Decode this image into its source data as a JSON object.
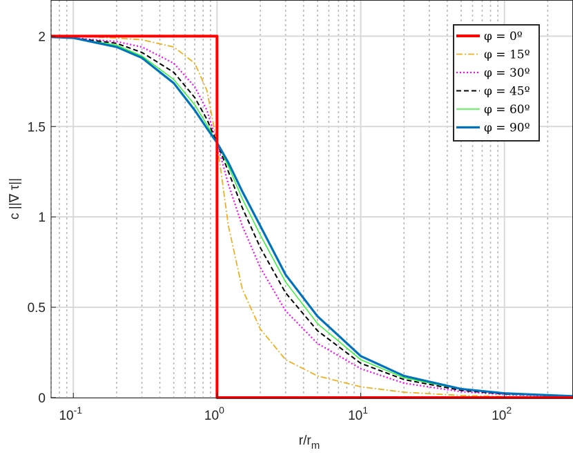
{
  "chart_data": {
    "type": "line",
    "xlabel": "r/r",
    "xlabel_sub": "m",
    "ylabel": "c ||∇ τ||",
    "xscale": "log",
    "xlim": [
      0.07,
      300
    ],
    "ylim": [
      0,
      2.2
    ],
    "grid": true,
    "legend_position": "top-right",
    "x_ticks": [
      {
        "base": "10",
        "exp": "-1",
        "value": 0.1
      },
      {
        "base": "10",
        "exp": "0",
        "value": 1
      },
      {
        "base": "10",
        "exp": "1",
        "value": 10
      },
      {
        "base": "10",
        "exp": "2",
        "value": 100
      }
    ],
    "y_ticks": [
      {
        "label": "0",
        "value": 0
      },
      {
        "label": "0.5",
        "value": 0.5
      },
      {
        "label": "1",
        "value": 1
      },
      {
        "label": "1.5",
        "value": 1.5
      },
      {
        "label": "2",
        "value": 2
      }
    ],
    "series": [
      {
        "name": "φ = 0º",
        "color": "#ff0000",
        "style": "solid",
        "width": 4,
        "x": [
          0.07,
          1,
          1,
          300
        ],
        "y": [
          2,
          2,
          0,
          0
        ]
      },
      {
        "name": "φ = 15º",
        "color": "#edb120",
        "style": "dashdot",
        "width": 1.8,
        "x": [
          0.07,
          0.1,
          0.2,
          0.3,
          0.5,
          0.7,
          0.85,
          1,
          1.2,
          1.5,
          2,
          3,
          5,
          10,
          20,
          50,
          100,
          300
        ],
        "y": [
          2,
          2,
          1.99,
          1.98,
          1.94,
          1.85,
          1.7,
          1.41,
          0.95,
          0.6,
          0.38,
          0.21,
          0.12,
          0.06,
          0.03,
          0.012,
          0.006,
          0.002
        ]
      },
      {
        "name": "φ = 30º",
        "color": "#ff00ff",
        "style": "dotted",
        "width": 2.2,
        "x": [
          0.07,
          0.1,
          0.2,
          0.3,
          0.5,
          0.7,
          0.85,
          1,
          1.2,
          1.5,
          2,
          3,
          5,
          10,
          20,
          50,
          100,
          300
        ],
        "y": [
          2,
          1.99,
          1.97,
          1.94,
          1.85,
          1.72,
          1.59,
          1.41,
          1.18,
          0.95,
          0.72,
          0.48,
          0.3,
          0.16,
          0.08,
          0.033,
          0.017,
          0.006
        ]
      },
      {
        "name": "φ = 45º",
        "color": "#000000",
        "style": "dashed",
        "width": 2,
        "x": [
          0.07,
          0.1,
          0.2,
          0.3,
          0.5,
          0.7,
          0.85,
          1,
          1.2,
          1.5,
          2,
          3,
          5,
          10,
          20,
          50,
          100,
          300
        ],
        "y": [
          1.995,
          1.99,
          1.96,
          1.91,
          1.8,
          1.66,
          1.54,
          1.41,
          1.25,
          1.05,
          0.83,
          0.58,
          0.37,
          0.19,
          0.1,
          0.04,
          0.02,
          0.007
        ]
      },
      {
        "name": "φ = 60º",
        "color": "#00ff00",
        "style": "solid",
        "width": 1.2,
        "x": [
          0.07,
          0.1,
          0.2,
          0.3,
          0.5,
          0.7,
          0.85,
          1,
          1.2,
          1.5,
          2,
          3,
          5,
          10,
          20,
          50,
          100,
          300
        ],
        "y": [
          1.995,
          1.99,
          1.95,
          1.89,
          1.76,
          1.62,
          1.51,
          1.41,
          1.28,
          1.1,
          0.9,
          0.64,
          0.41,
          0.21,
          0.11,
          0.045,
          0.022,
          0.0075
        ]
      },
      {
        "name": "φ = 90º",
        "color": "#0072bd",
        "style": "solid",
        "width": 3.2,
        "x": [
          0.07,
          0.1,
          0.2,
          0.3,
          0.5,
          0.7,
          0.85,
          1,
          1.2,
          1.5,
          2,
          3,
          5,
          10,
          20,
          50,
          100,
          300
        ],
        "y": [
          1.995,
          1.99,
          1.94,
          1.88,
          1.74,
          1.59,
          1.49,
          1.41,
          1.3,
          1.14,
          0.95,
          0.68,
          0.45,
          0.23,
          0.12,
          0.048,
          0.024,
          0.008
        ]
      }
    ]
  }
}
